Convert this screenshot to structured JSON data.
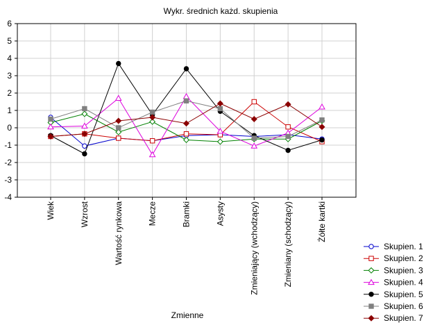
{
  "chart_data": {
    "type": "line",
    "title": "Wykr. średnich każd. skupienia",
    "xlabel": "Zmienne",
    "ylabel": "",
    "ylim": [
      -4,
      6
    ],
    "yticks": [
      6,
      5,
      4,
      3,
      2,
      1,
      0,
      -1,
      -2,
      -3,
      -4
    ],
    "grid": true,
    "legend_position": "bottom-right",
    "categories": [
      "Wiek",
      "Wzrost",
      "Wartość rynkowa",
      "Mecze",
      "Bramki",
      "Asysty",
      "Zmieniający (wchodzący)",
      "Zmieniany (schodzący)",
      "Żółte kartki"
    ],
    "series": [
      {
        "name": "Skupien. 1",
        "color": "#0000cc",
        "marker": "circle-open",
        "values": [
          0.6,
          -1.05,
          -0.6,
          -0.75,
          -0.45,
          -0.4,
          -0.5,
          -0.4,
          -0.65
        ]
      },
      {
        "name": "Skupien. 2",
        "color": "#cc0000",
        "marker": "square-open",
        "values": [
          -0.5,
          -0.35,
          -0.6,
          -0.75,
          -0.35,
          -0.4,
          1.5,
          0.05,
          -0.8
        ]
      },
      {
        "name": "Skupien. 3",
        "color": "#008000",
        "marker": "diamond-open",
        "values": [
          0.3,
          0.8,
          -0.25,
          0.35,
          -0.7,
          -0.8,
          -0.65,
          -0.65,
          0.4
        ]
      },
      {
        "name": "Skupien. 4",
        "color": "#dd00dd",
        "marker": "triangle-open",
        "values": [
          0.05,
          0.1,
          1.7,
          -1.55,
          1.8,
          -0.2,
          -1.05,
          -0.3,
          1.2
        ]
      },
      {
        "name": "Skupien. 5",
        "color": "#000000",
        "marker": "circle-filled",
        "values": [
          -0.45,
          -1.5,
          3.7,
          0.75,
          3.4,
          0.95,
          -0.45,
          -1.3,
          -0.7
        ]
      },
      {
        "name": "Skupien. 6",
        "color": "#808080",
        "marker": "square-filled",
        "values": [
          0.5,
          1.1,
          0.0,
          0.9,
          1.55,
          1.1,
          -0.6,
          -0.5,
          0.45
        ]
      },
      {
        "name": "Skupien. 7",
        "color": "#8b0000",
        "marker": "diamond-filled",
        "values": [
          -0.5,
          -0.35,
          0.4,
          0.6,
          0.25,
          1.4,
          0.5,
          1.35,
          0.05
        ]
      }
    ]
  }
}
